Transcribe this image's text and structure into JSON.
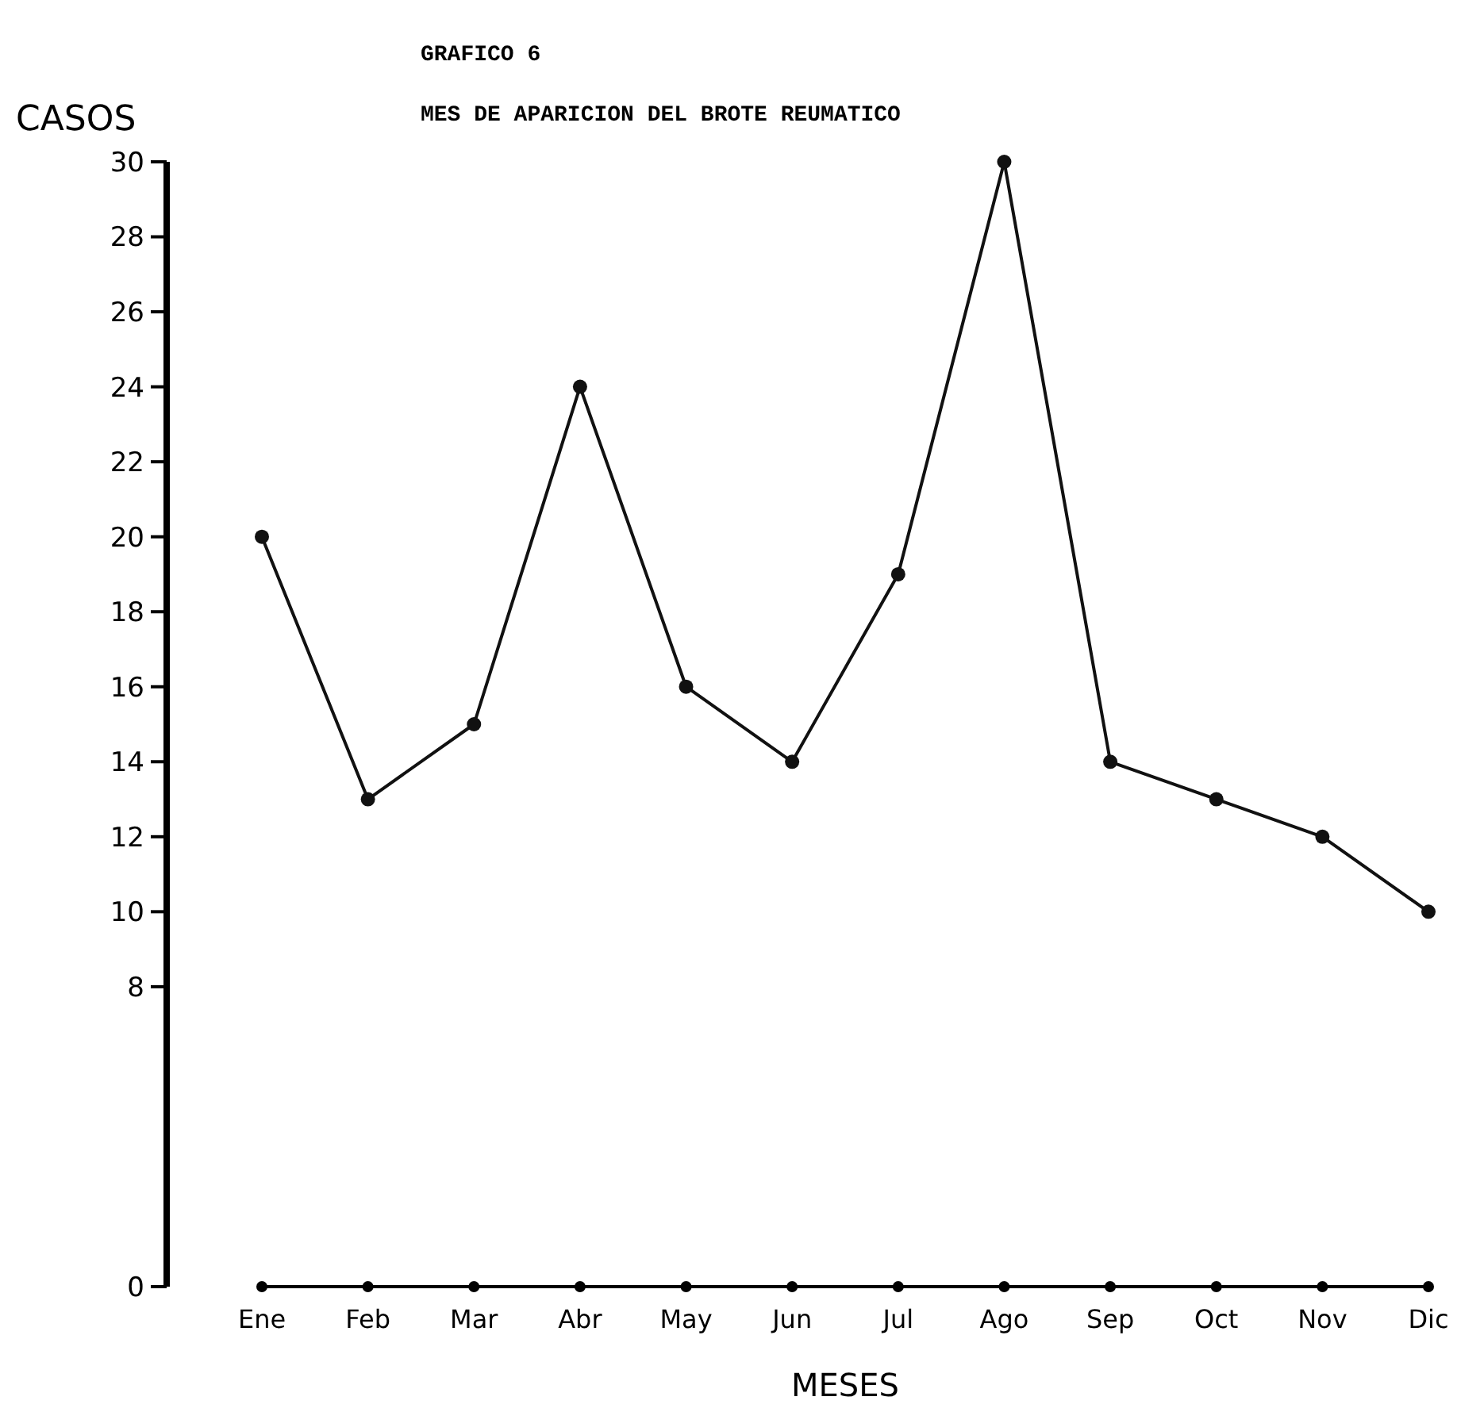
{
  "chart_data": {
    "type": "line",
    "title": "GRAFICO 6",
    "subtitle": "MES DE APARICION DEL BROTE REUMATICO",
    "xlabel": "MESES",
    "ylabel": "CASOS",
    "categories": [
      "Ene",
      "Feb",
      "Mar",
      "Abr",
      "May",
      "Jun",
      "Jul",
      "Ago",
      "Sep",
      "Oct",
      "Nov",
      "Dic"
    ],
    "values": [
      20,
      13,
      15,
      24,
      16,
      14,
      19,
      30,
      14,
      13,
      12,
      10
    ],
    "color": "#111111",
    "marker": "circle",
    "line_style": "solid",
    "grid": false,
    "ylim": [
      0,
      30
    ],
    "yticks": [
      0,
      8,
      10,
      12,
      14,
      16,
      18,
      20,
      22,
      24,
      26,
      28,
      30
    ]
  }
}
